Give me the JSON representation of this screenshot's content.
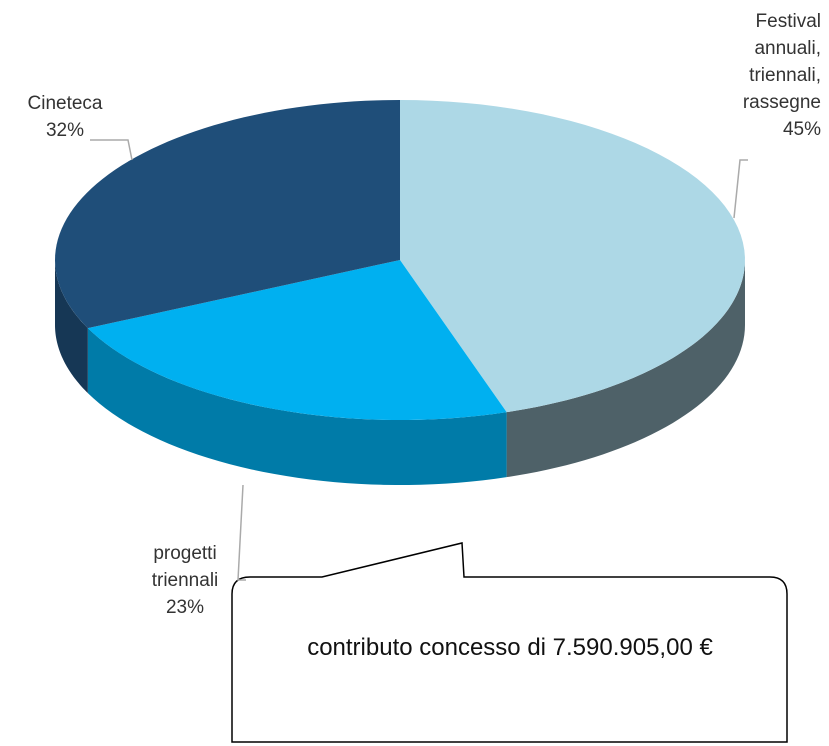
{
  "chart_data": {
    "type": "pie",
    "categories": [
      "Festival annuali, triennali, rassegne",
      "progetti triennali",
      "Cineteca"
    ],
    "values": [
      45,
      23,
      32
    ],
    "value_labels": [
      "45%",
      "23%",
      "32%"
    ],
    "colors": [
      "#add8e6",
      "#00b0f0",
      "#1f4e79"
    ],
    "annotation": "contributo concesso di 7.590.905,00 €"
  }
}
